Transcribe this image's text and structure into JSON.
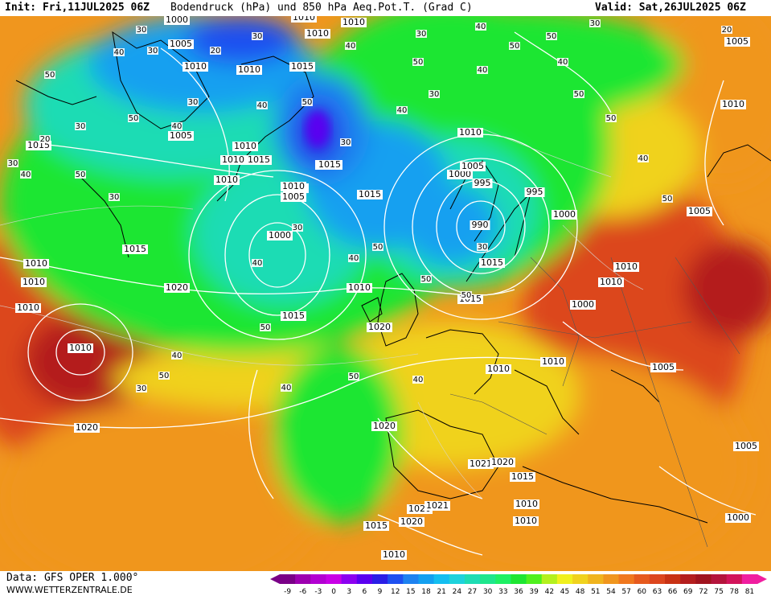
{
  "header": {
    "init": "Init: Fri,11JUL2025 06Z",
    "title": "Bodendruck (hPa) und 850 hPa Aeq.Pot.T. (Grad C)",
    "valid": "Valid: Sat,26JUL2025 06Z"
  },
  "footer": {
    "data_source": "Data: GFS OPER 1.000°",
    "website": "WWW.WETTERZENTRALE.DE"
  },
  "legend": {
    "ticks": [
      "-9",
      "-6",
      "-3",
      "0",
      "3",
      "6",
      "9",
      "12",
      "15",
      "18",
      "21",
      "24",
      "27",
      "30",
      "33",
      "36",
      "39",
      "42",
      "45",
      "48",
      "51",
      "54",
      "57",
      "60",
      "63",
      "66",
      "69",
      "72",
      "75",
      "78",
      "81"
    ],
    "colors": [
      "#7a0087",
      "#9d00b0",
      "#b300d2",
      "#c800e6",
      "#8c00f0",
      "#5a00f0",
      "#2a1ee6",
      "#1e50f0",
      "#1e82f0",
      "#14a0f0",
      "#14bef0",
      "#1ed2dc",
      "#1edcb4",
      "#1ee68c",
      "#1ef064",
      "#1ee632",
      "#50f01e",
      "#b4f01e",
      "#f0f01e",
      "#f0d21e",
      "#f0b41e",
      "#f0961e",
      "#f0781e",
      "#e65a1e",
      "#dc461e",
      "#c83214",
      "#b41e1e",
      "#a0141e",
      "#b4143c",
      "#d2145a",
      "#f01ea0"
    ]
  },
  "map": {
    "isobar_labels": [
      "1000",
      "1010",
      "1010",
      "1010",
      "1005",
      "1010",
      "1010",
      "1015",
      "1010",
      "1005",
      "1015",
      "1010",
      "1015",
      "1010",
      "1005",
      "1015",
      "1010",
      "1005",
      "1000",
      "995",
      "995",
      "990",
      "1000",
      "1005",
      "1010",
      "1015",
      "1010",
      "1000",
      "1015",
      "1020",
      "1010",
      "1015",
      "1010",
      "1010",
      "1010",
      "1015",
      "1020",
      "1015",
      "1010",
      "1010",
      "1020",
      "1020",
      "1021",
      "1020",
      "1015",
      "1020",
      "1021",
      "1020",
      "1015",
      "1010",
      "1010",
      "1010",
      "1005",
      "1005",
      "1010",
      "1000",
      "1010",
      "1015",
      "1010",
      "1005",
      "1005",
      "1000"
    ],
    "theta_labels": [
      "30",
      "40",
      "50",
      "30",
      "20",
      "30",
      "40",
      "30",
      "40",
      "50",
      "30",
      "20",
      "30",
      "40",
      "50",
      "30",
      "20",
      "30",
      "40",
      "50",
      "30",
      "40",
      "50",
      "30",
      "40",
      "50",
      "30",
      "40",
      "50",
      "40",
      "50",
      "50",
      "40",
      "50",
      "40",
      "50",
      "50",
      "50",
      "30",
      "40",
      "50",
      "40",
      "50",
      "30",
      "40",
      "50",
      "40",
      "30"
    ],
    "colors": {
      "very_cold": "#1e50f0",
      "cold": "#14a0f0",
      "cool": "#1edcb4",
      "mild": "#1ee632",
      "warm": "#f0f01e",
      "hot": "#f0961e",
      "very_hot": "#dc461e",
      "extreme": "#b41e1e"
    }
  }
}
